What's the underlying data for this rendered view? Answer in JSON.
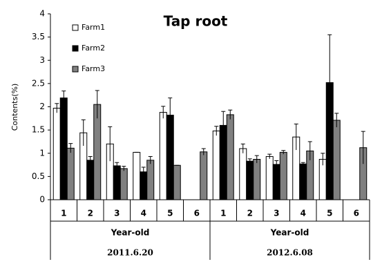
{
  "chart_data": {
    "type": "bar",
    "title": "Tap root",
    "y_label": "Contents(%)",
    "categories": [
      "1",
      "2",
      "3",
      "4",
      "5",
      "6",
      "1",
      "2",
      "3",
      "4",
      "5",
      "6"
    ],
    "groups": [
      {
        "label": "Year-old",
        "date": "2011.6.20"
      },
      {
        "label": "Year-old",
        "date": "2012.6.08"
      }
    ],
    "series": [
      {
        "name": "Farm1",
        "color": "#ffffff",
        "values": [
          1.97,
          1.44,
          1.2,
          1.02,
          1.88,
          null,
          1.48,
          1.1,
          0.93,
          1.35,
          0.87,
          null
        ],
        "errors": [
          0.1,
          0.28,
          0.37,
          0,
          0.13,
          null,
          0.1,
          0.1,
          0.05,
          0.28,
          0.13,
          null
        ]
      },
      {
        "name": "Farm2",
        "color": "#000000",
        "values": [
          2.19,
          0.85,
          0.73,
          0.6,
          1.82,
          null,
          1.6,
          0.83,
          0.76,
          0.77,
          2.52,
          null
        ],
        "errors": [
          0.15,
          0.08,
          0.07,
          0.1,
          0.37,
          null,
          0.3,
          0.05,
          0.08,
          0.03,
          1.03,
          null
        ]
      },
      {
        "name": "Farm3",
        "color": "#808080",
        "values": [
          1.11,
          2.05,
          0.67,
          0.85,
          0.74,
          1.03,
          1.83,
          0.87,
          1.02,
          1.05,
          1.71,
          1.12
        ],
        "errors": [
          0.1,
          0.3,
          0.05,
          0.08,
          0,
          0.07,
          0.1,
          0.08,
          0.04,
          0.2,
          0.15,
          0.35
        ]
      }
    ],
    "ylim": [
      0,
      4
    ],
    "yticks": [
      0,
      0.5,
      1,
      1.5,
      2,
      2.5,
      3,
      3.5,
      4
    ],
    "legend": "top-left"
  }
}
